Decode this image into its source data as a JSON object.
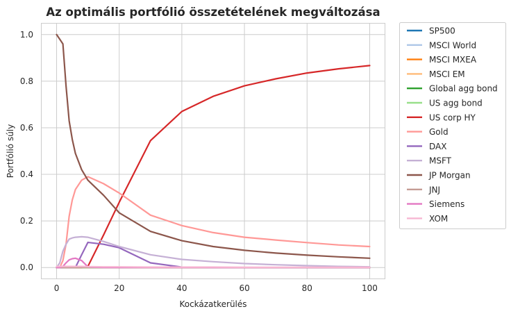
{
  "chart_data": {
    "type": "line",
    "title": "Az optimális portfólió összetételének megváltozása",
    "xlabel": "Kockázatkerülés",
    "ylabel": "Portfólió súly",
    "xlim": [
      -5,
      105
    ],
    "ylim": [
      -0.05,
      1.05
    ],
    "xticks": [
      "0",
      "20",
      "40",
      "60",
      "80",
      "100"
    ],
    "yticks": [
      "0.0",
      "0.2",
      "0.4",
      "0.6",
      "0.8",
      "1.0"
    ],
    "grid": true,
    "legend_position": "outside-right",
    "x": [
      0,
      1,
      2,
      3,
      4,
      5,
      6,
      8,
      10,
      15,
      20,
      30,
      40,
      50,
      60,
      70,
      80,
      90,
      100
    ],
    "series": [
      {
        "name": "SP500",
        "color": "#1f77b4",
        "values": [
          0,
          0,
          0,
          0,
          0,
          0,
          0,
          0,
          0,
          0,
          0,
          0,
          0,
          0,
          0,
          0,
          0,
          0,
          0
        ]
      },
      {
        "name": "MSCI World",
        "color": "#aec7e8",
        "values": [
          0,
          0,
          0,
          0,
          0,
          0,
          0,
          0,
          0,
          0,
          0,
          0,
          0,
          0,
          0,
          0,
          0,
          0,
          0
        ]
      },
      {
        "name": "MSCI MXEA",
        "color": "#ff7f0e",
        "values": [
          0,
          0,
          0,
          0,
          0,
          0,
          0,
          0,
          0,
          0,
          0,
          0,
          0,
          0,
          0,
          0,
          0,
          0,
          0
        ]
      },
      {
        "name": "MSCI EM",
        "color": "#ffbb78",
        "values": [
          0,
          0,
          0,
          0,
          0,
          0,
          0,
          0,
          0,
          0,
          0,
          0,
          0,
          0,
          0,
          0,
          0,
          0,
          0
        ]
      },
      {
        "name": "Global agg bond",
        "color": "#2ca02c",
        "values": [
          0,
          0,
          0,
          0,
          0,
          0,
          0,
          0,
          0,
          0,
          0,
          0,
          0,
          0,
          0,
          0,
          0,
          0,
          0
        ]
      },
      {
        "name": "US agg bond",
        "color": "#98df8a",
        "values": [
          0,
          0,
          0,
          0,
          0,
          0,
          0,
          0,
          0,
          0,
          0,
          0,
          0,
          0,
          0,
          0,
          0,
          0,
          0
        ]
      },
      {
        "name": "US corp HY",
        "color": "#d62728",
        "values": [
          0,
          0,
          0,
          0,
          0,
          0,
          0,
          0,
          0.005,
          0.14,
          0.28,
          0.545,
          0.67,
          0.735,
          0.78,
          0.81,
          0.835,
          0.853,
          0.867
        ]
      },
      {
        "name": "Gold",
        "color": "#ff9896",
        "values": [
          0,
          0,
          0.03,
          0.1,
          0.22,
          0.29,
          0.335,
          0.375,
          0.39,
          0.36,
          0.32,
          0.225,
          0.18,
          0.15,
          0.13,
          0.118,
          0.107,
          0.097,
          0.09
        ]
      },
      {
        "name": "DAX",
        "color": "#9467bd",
        "values": [
          0,
          0,
          0,
          0,
          0,
          0,
          0,
          0.055,
          0.108,
          0.1,
          0.085,
          0.02,
          0.002,
          0,
          0,
          0,
          0,
          0,
          0
        ]
      },
      {
        "name": "MSFT",
        "color": "#c5b0d5",
        "values": [
          0,
          0.02,
          0.07,
          0.1,
          0.122,
          0.127,
          0.13,
          0.132,
          0.13,
          0.112,
          0.09,
          0.055,
          0.035,
          0.025,
          0.017,
          0.012,
          0.008,
          0.005,
          0.003
        ]
      },
      {
        "name": "JP Morgan",
        "color": "#8c564b",
        "values": [
          1,
          0.98,
          0.96,
          0.78,
          0.63,
          0.55,
          0.49,
          0.42,
          0.375,
          0.31,
          0.235,
          0.155,
          0.115,
          0.09,
          0.074,
          0.062,
          0.053,
          0.046,
          0.04
        ]
      },
      {
        "name": "JNJ",
        "color": "#c49c94",
        "values": [
          0,
          0,
          0,
          0,
          0,
          0,
          0,
          0,
          0,
          0,
          0,
          0,
          0,
          0,
          0,
          0,
          0,
          0,
          0
        ]
      },
      {
        "name": "Siemens",
        "color": "#e377c2",
        "values": [
          0,
          0,
          0.005,
          0.02,
          0.033,
          0.038,
          0.04,
          0.03,
          0.003,
          0,
          0,
          0,
          0,
          0,
          0,
          0,
          0,
          0,
          0
        ]
      },
      {
        "name": "XOM",
        "color": "#f7b6d2",
        "values": [
          0.005,
          0.005,
          0.005,
          0.005,
          0.005,
          0.005,
          0.005,
          0.005,
          0.004,
          0.003,
          0.003,
          0.002,
          0.002,
          0.002,
          0.001,
          0.001,
          0.001,
          0.001,
          0.001
        ]
      }
    ]
  }
}
